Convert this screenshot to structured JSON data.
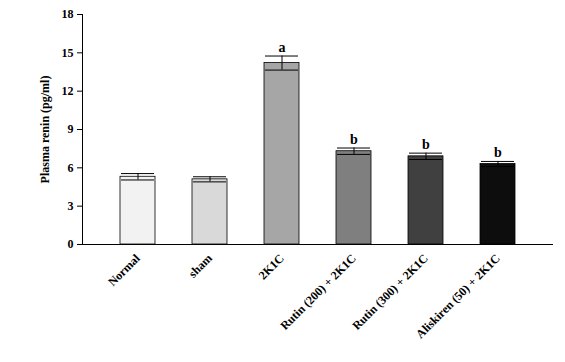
{
  "chart_data": {
    "type": "bar",
    "categories": [
      "Normal",
      "sham",
      "2K1C",
      "Rutin (200) + 2K1C",
      "Rutin (300) + 2K1C",
      "Aliskiren (50) + 2K1C"
    ],
    "values": [
      5.3,
      5.1,
      14.2,
      7.3,
      6.9,
      6.3
    ],
    "errors": [
      0.25,
      0.2,
      0.55,
      0.25,
      0.25,
      0.2
    ],
    "annotations": [
      null,
      null,
      "a",
      "b",
      "b",
      "b"
    ],
    "colors": [
      "#f2f2f2",
      "#d9d9d9",
      "#a6a6a6",
      "#7f7f7f",
      "#404040",
      "#0d0d0d"
    ],
    "y_label": "Plasma renin (pg/ml)",
    "ylim": [
      0,
      18
    ],
    "yticks": [
      0,
      3,
      6,
      9,
      12,
      15,
      18
    ],
    "grid": false
  }
}
